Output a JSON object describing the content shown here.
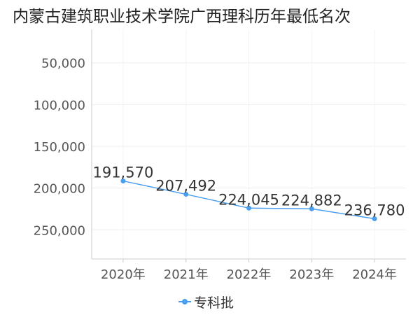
{
  "title": "内蒙古建筑职业技术学院广西理科历年最低名次",
  "chart_data": {
    "type": "line",
    "title": "内蒙古建筑职业技术学院广西理科历年最低名次",
    "categories": [
      "2020年",
      "2021年",
      "2022年",
      "2023年",
      "2024年"
    ],
    "series": [
      {
        "name": "专科批",
        "values": [
          191570,
          207492,
          224045,
          224882,
          236780
        ],
        "labels": [
          "191,570",
          "207,492",
          "224,045",
          "224,882",
          "236,780"
        ],
        "color": "#4a9ef0"
      }
    ],
    "y_axis": {
      "inverted": true,
      "range": [
        10000,
        285000
      ],
      "ticks": [
        50000,
        100000,
        150000,
        200000,
        250000
      ],
      "tick_labels": [
        "50,000",
        "100,000",
        "150,000",
        "200,000",
        "250,000"
      ]
    },
    "legend": {
      "position": "bottom-center"
    },
    "grid": true
  }
}
